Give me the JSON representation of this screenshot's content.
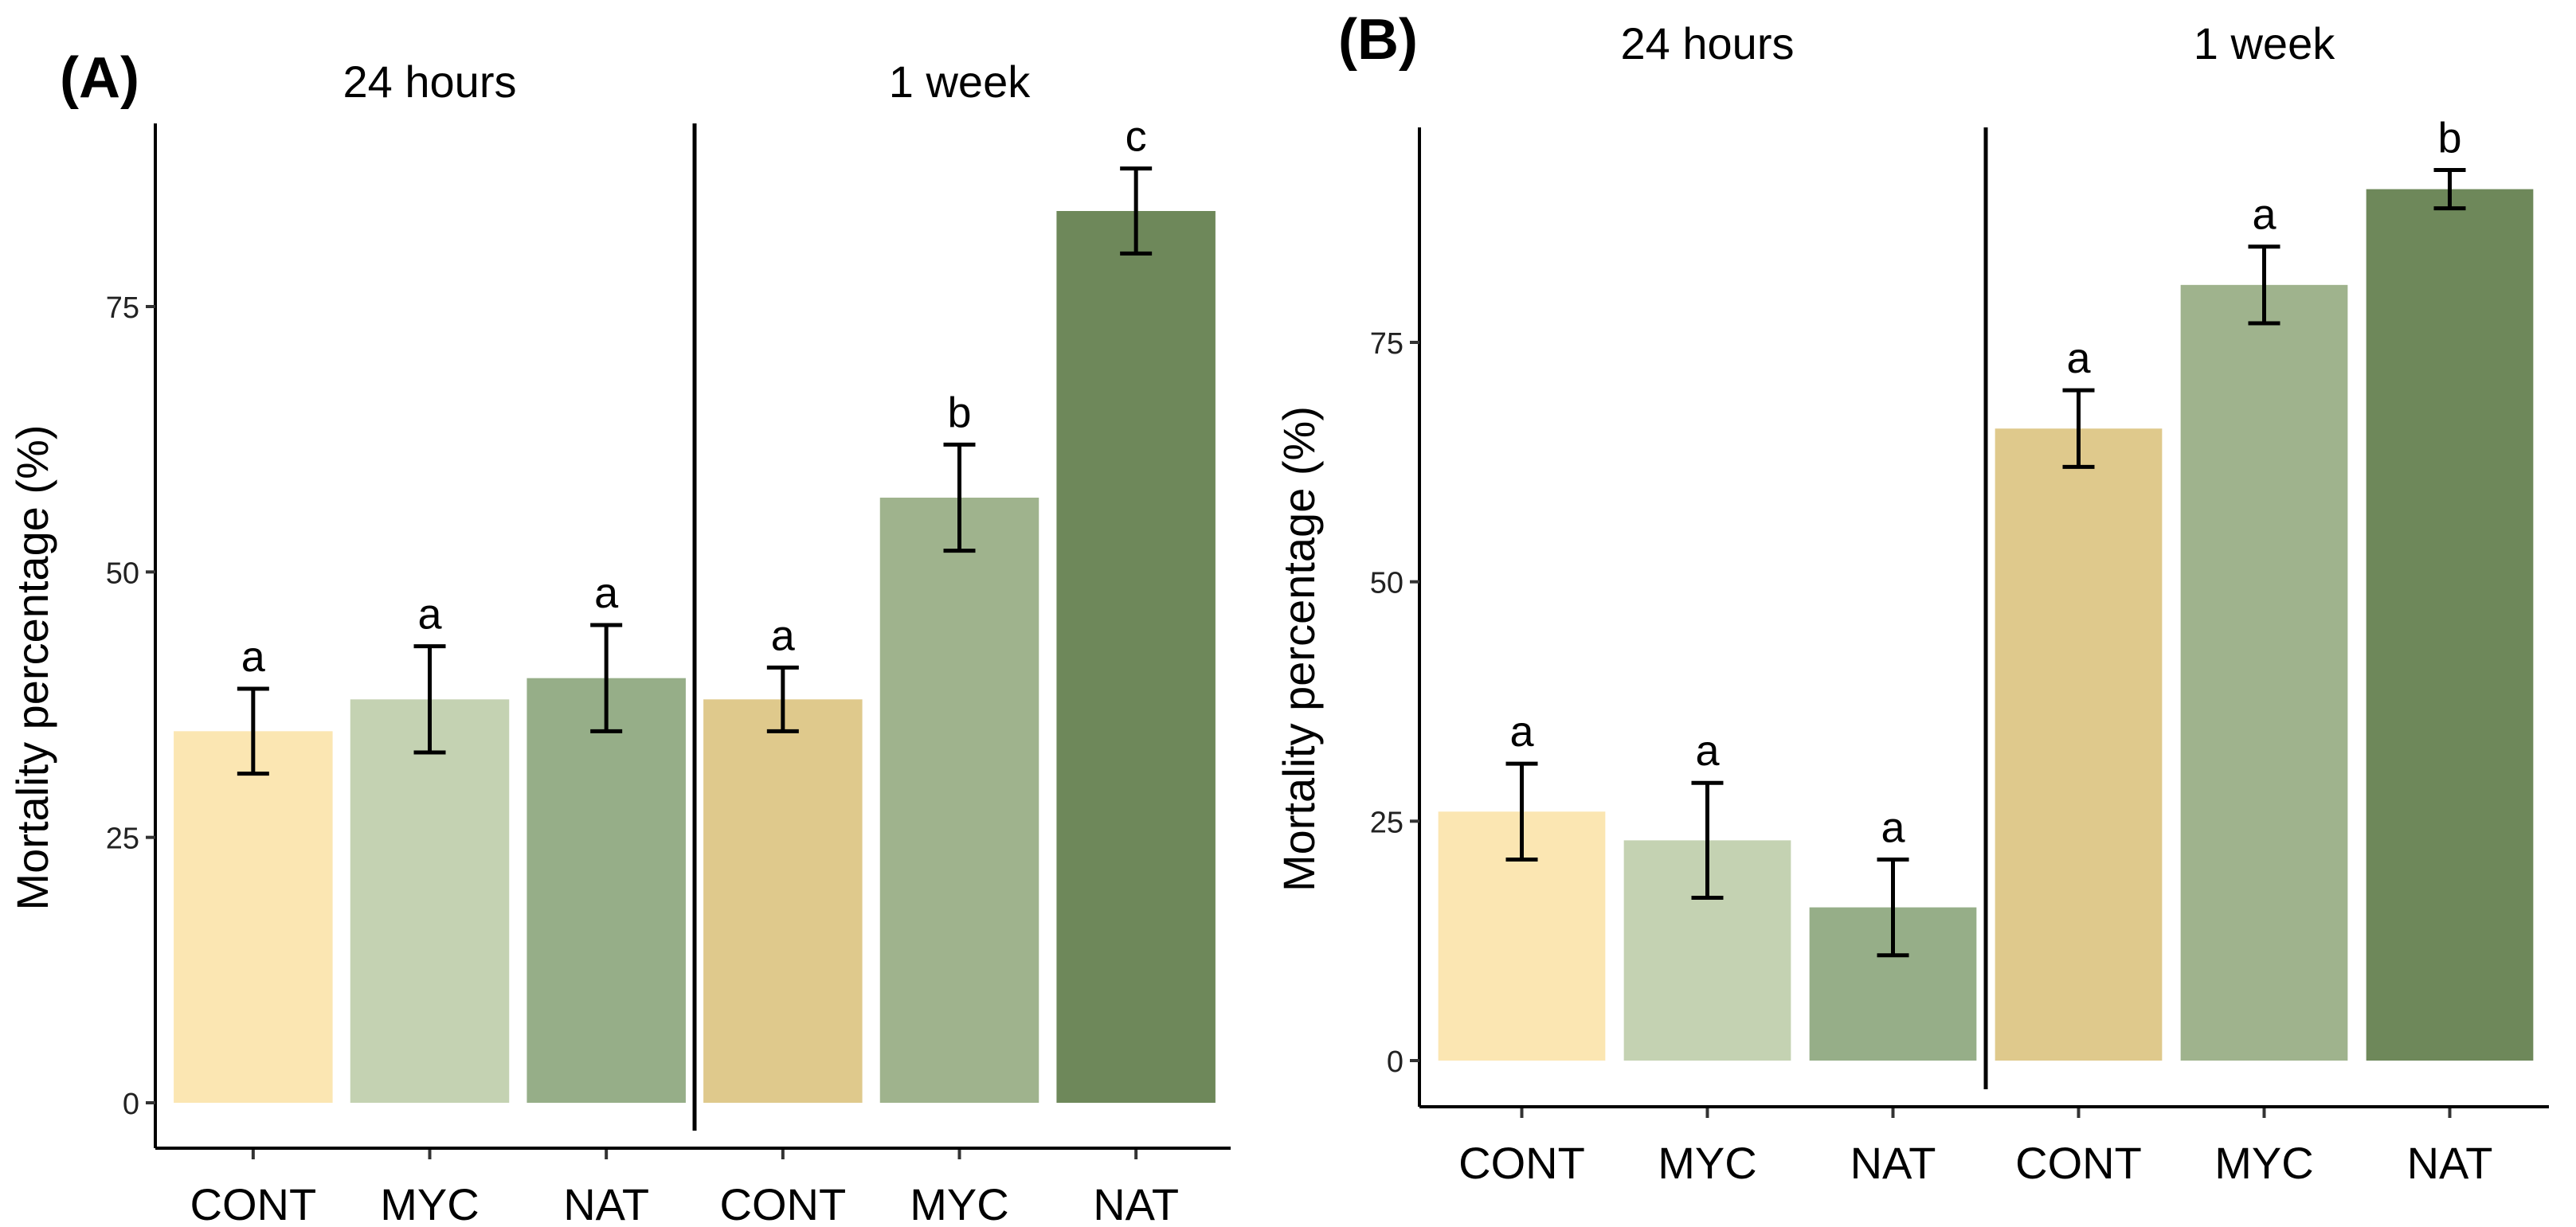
{
  "chart_data": [
    {
      "type": "bar",
      "panel_label": "(A)",
      "facets": [
        "24 hours",
        "1 week"
      ],
      "categories": [
        "CONT",
        "MYC",
        "NAT",
        "CONT",
        "MYC",
        "NAT"
      ],
      "values": [
        35,
        38,
        40,
        38,
        57,
        84
      ],
      "err_low": [
        31,
        33,
        35,
        35,
        52,
        80
      ],
      "err_high": [
        39,
        43,
        45,
        41,
        62,
        88
      ],
      "letters": [
        "a",
        "a",
        "a",
        "a",
        "b",
        "c"
      ],
      "colors": [
        "#FBE6B2",
        "#C4D2B2",
        "#96AE88",
        "#DFC98C",
        "#9FB38D",
        "#6E885A"
      ],
      "ylabel": "Mortality percentage (%)",
      "yticks": [
        0,
        25,
        50,
        75
      ],
      "ylim": [
        -4,
        93
      ],
      "grid": false
    },
    {
      "type": "bar",
      "panel_label": "(B)",
      "facets": [
        "24 hours",
        "1 week"
      ],
      "categories": [
        "CONT",
        "MYC",
        "NAT",
        "CONT",
        "MYC",
        "NAT"
      ],
      "values": [
        26,
        23,
        16,
        66,
        81,
        91
      ],
      "err_low": [
        21,
        17,
        11,
        62,
        77,
        89
      ],
      "err_high": [
        31,
        29,
        21,
        70,
        85,
        93
      ],
      "letters": [
        "a",
        "a",
        "a",
        "a",
        "a",
        "b"
      ],
      "colors": [
        "#FBE6B2",
        "#C4D2B2",
        "#96AE88",
        "#DFC98C",
        "#9FB38D",
        "#6E885A"
      ],
      "ylabel": "Mortality percentage (%)",
      "yticks": [
        0,
        25,
        50,
        75
      ],
      "ylim": [
        -4,
        97
      ],
      "grid": false
    }
  ]
}
